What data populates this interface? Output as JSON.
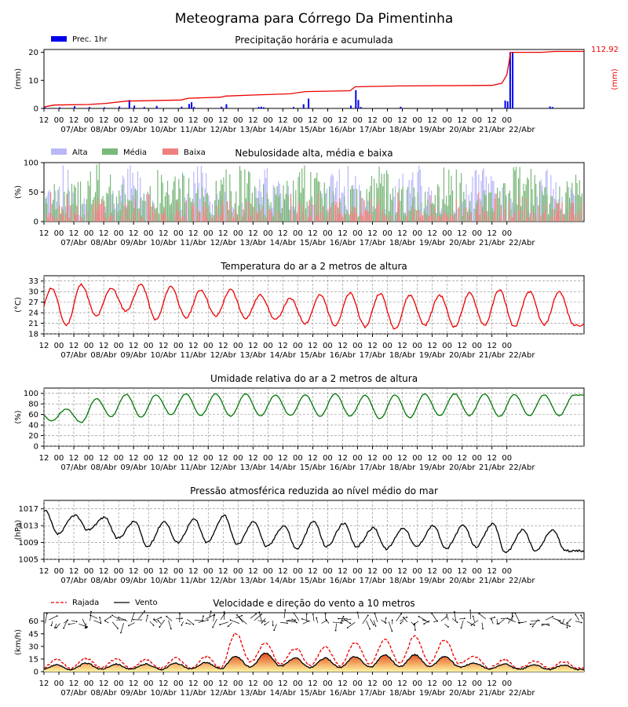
{
  "page_title": "Meteograma para Córrego Da Pimentinha",
  "hour_ticks": [
    "12",
    "00",
    "12",
    "00",
    "12",
    "00",
    "12",
    "00",
    "12",
    "00",
    "12",
    "00",
    "12",
    "00",
    "12",
    "00",
    "12",
    "00",
    "12",
    "00",
    "12",
    "00",
    "12",
    "00",
    "12",
    "00",
    "12",
    "00",
    "12",
    "00",
    "12",
    "00"
  ],
  "date_labels": [
    "07/Abr",
    "08/Abr",
    "09/Abr",
    "10/Abr",
    "11/Abr",
    "12/Abr",
    "13/Abr",
    "14/Abr",
    "15/Abr",
    "16/Abr",
    "17/Abr",
    "18/Abr",
    "19/Abr",
    "20/Abr",
    "21/Abr",
    "22/Abr"
  ],
  "colors": {
    "precip_bar": "#0000ee",
    "precip_acc": "#ee0000",
    "cloud_alta": "#b8b8f8",
    "cloud_media": "#7ab87a",
    "cloud_baixa": "#f08080",
    "temperature": "#ee0000",
    "humidity": "#007700",
    "pressure": "#000000",
    "gust": "#ee0000",
    "wind": "#000000"
  },
  "chart_data": [
    {
      "type": "bar",
      "title": "Precipitação horária e acumulada",
      "ylabel": "(mm)",
      "y2label": "(mm)",
      "ylim": [
        0,
        21
      ],
      "yticks": [
        0,
        10,
        20
      ],
      "legend": [
        "Prec. 1hr"
      ],
      "accumulated_total": "112.92",
      "hourly_bars": [
        [
          0,
          0.6
        ],
        [
          12,
          0.4
        ],
        [
          24,
          0.8
        ],
        [
          36,
          0.5
        ],
        [
          48,
          0.4
        ],
        [
          60,
          0.7
        ],
        [
          68,
          3.0
        ],
        [
          72,
          1.0
        ],
        [
          80,
          0.5
        ],
        [
          90,
          0.9
        ],
        [
          110,
          0.6
        ],
        [
          116,
          1.6
        ],
        [
          118,
          2.2
        ],
        [
          120,
          0.5
        ],
        [
          142,
          0.6
        ],
        [
          146,
          1.5
        ],
        [
          172,
          0.5
        ],
        [
          174,
          0.6
        ],
        [
          176,
          0.4
        ],
        [
          200,
          0.5
        ],
        [
          208,
          1.5
        ],
        [
          212,
          3.5
        ],
        [
          246,
          1.0
        ],
        [
          250,
          6.5
        ],
        [
          252,
          3.0
        ],
        [
          254,
          0.5
        ],
        [
          286,
          0.6
        ],
        [
          370,
          2.8
        ],
        [
          372,
          2.5
        ],
        [
          374,
          20.0
        ],
        [
          376,
          20.0
        ],
        [
          406,
          0.7
        ],
        [
          408,
          0.5
        ]
      ],
      "accumulated": [
        [
          0,
          0.5
        ],
        [
          8,
          1.2
        ],
        [
          36,
          1.4
        ],
        [
          50,
          1.8
        ],
        [
          66,
          2.6
        ],
        [
          110,
          3.0
        ],
        [
          116,
          3.6
        ],
        [
          142,
          4.0
        ],
        [
          146,
          4.4
        ],
        [
          170,
          4.8
        ],
        [
          198,
          5.2
        ],
        [
          210,
          6.0
        ],
        [
          246,
          6.3
        ],
        [
          250,
          7.7
        ],
        [
          286,
          8.0
        ],
        [
          360,
          8.2
        ],
        [
          368,
          9.0
        ],
        [
          372,
          12.0
        ],
        [
          375,
          20.0
        ],
        [
          400,
          20.0
        ],
        [
          410,
          20.3
        ],
        [
          434,
          20.3
        ]
      ]
    },
    {
      "type": "bar",
      "title": "Nebulosidade alta, média e baixa",
      "ylabel": "(%)",
      "ylim": [
        0,
        100
      ],
      "yticks": [
        0,
        50,
        100
      ],
      "legend": [
        "Alta",
        "Média",
        "Baixa"
      ]
    },
    {
      "type": "line",
      "title": "Temperatura do ar a 2 metros de altura",
      "ylabel": "(°C)",
      "ylim": [
        18,
        34.5
      ],
      "yticks": [
        18,
        21,
        24,
        27,
        30,
        33
      ],
      "day_max": [
        31,
        32,
        31,
        32,
        31.5,
        30.5,
        30.5,
        29,
        28,
        29,
        29.5,
        29.5,
        29,
        29,
        29.5,
        30.5,
        30
      ],
      "day_min": [
        20.5,
        23,
        24.5,
        22,
        22.5,
        23,
        22.5,
        22,
        21,
        20.5,
        20,
        19.5,
        20.5,
        20,
        20.5,
        20,
        20.5
      ]
    },
    {
      "type": "line",
      "title": "Umidade relativa do ar a 2 metros de altura",
      "ylabel": "(%)",
      "ylim": [
        0,
        110
      ],
      "yticks": [
        0,
        20,
        40,
        60,
        80,
        100
      ],
      "day_max": [
        70,
        90,
        98,
        97,
        99,
        99,
        99,
        97,
        97,
        99,
        96,
        97,
        99,
        99,
        99,
        98,
        97
      ],
      "day_min": [
        48,
        45,
        56,
        55,
        60,
        58,
        57,
        58,
        58,
        57,
        57,
        52,
        54,
        58,
        58,
        56,
        58
      ]
    },
    {
      "type": "line",
      "title": "Pressão atmosférica reduzida ao nível médio do mar",
      "ylabel": "(hPa)",
      "ylim": [
        1005,
        1019
      ],
      "yticks": [
        1005,
        1009,
        1013,
        1017
      ],
      "day_max": [
        1016.5,
        1015.5,
        1015,
        1014,
        1014,
        1014.5,
        1015.5,
        1014,
        1013,
        1014,
        1013.5,
        1012.5,
        1012.5,
        1013,
        1013,
        1013.5,
        1012
      ],
      "day_min": [
        1011,
        1012,
        1010,
        1008,
        1009,
        1009,
        1008.5,
        1008,
        1007.5,
        1008,
        1008,
        1007.5,
        1008,
        1007.5,
        1008,
        1006.5,
        1007
      ]
    },
    {
      "type": "line",
      "title": "Velocidade e direção do vento a 10 metros",
      "ylabel": "(km/h)",
      "ylim": [
        0,
        70
      ],
      "yticks": [
        0,
        15,
        30,
        45,
        60
      ],
      "legend": [
        "Rajada",
        "Vento"
      ],
      "gust_day_max": [
        14,
        16,
        15,
        14,
        16,
        18,
        46,
        34,
        28,
        30,
        35,
        38,
        42,
        38,
        18,
        14,
        12
      ],
      "wind_day_max": [
        8,
        10,
        9,
        9,
        10,
        11,
        18,
        22,
        16,
        16,
        18,
        20,
        20,
        18,
        10,
        9,
        8
      ]
    }
  ]
}
